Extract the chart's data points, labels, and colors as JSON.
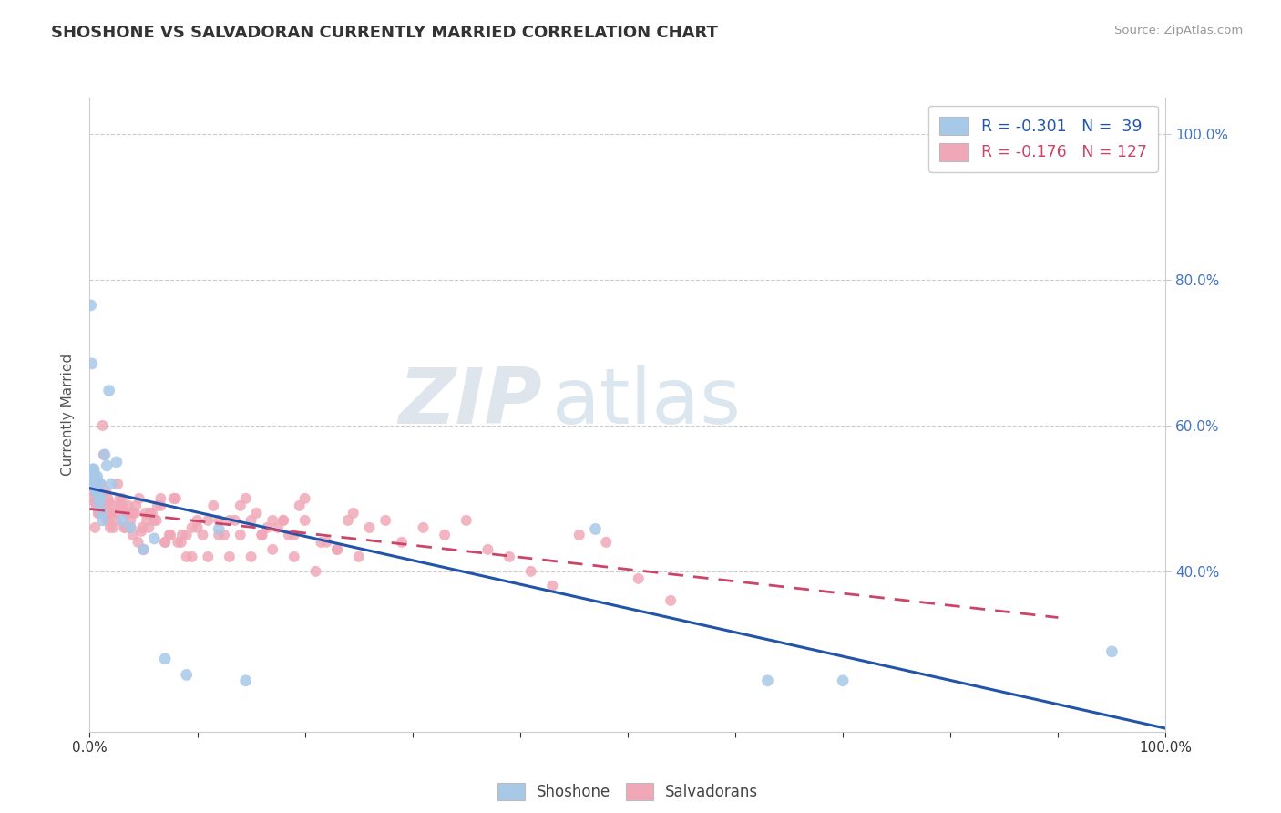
{
  "title": "SHOSHONE VS SALVADORAN CURRENTLY MARRIED CORRELATION CHART",
  "source": "Source: ZipAtlas.com",
  "ylabel": "Currently Married",
  "shoshone_R": -0.301,
  "shoshone_N": 39,
  "salvadoran_R": -0.176,
  "salvadoran_N": 127,
  "shoshone_color": "#a8c8e8",
  "salvadoran_color": "#f0a8b8",
  "shoshone_line_color": "#2255aa",
  "salvadoran_line_color": "#cc4466",
  "background_color": "#ffffff",
  "xlim": [
    0.0,
    1.0
  ],
  "ylim": [
    0.18,
    1.05
  ],
  "y_ticks_right": [
    0.4,
    0.6,
    0.8,
    1.0
  ],
  "watermark_zip": "ZIP",
  "watermark_atlas": "atlas",
  "shoshone_x": [
    0.001,
    0.002,
    0.002,
    0.003,
    0.003,
    0.004,
    0.004,
    0.005,
    0.005,
    0.006,
    0.006,
    0.007,
    0.007,
    0.008,
    0.008,
    0.009,
    0.009,
    0.01,
    0.01,
    0.011,
    0.012,
    0.014,
    0.016,
    0.018,
    0.02,
    0.025,
    0.03,
    0.038,
    0.05,
    0.06,
    0.07,
    0.09,
    0.12,
    0.145,
    0.47,
    0.63,
    0.7,
    0.95,
    0.003
  ],
  "shoshone_y": [
    0.765,
    0.685,
    0.525,
    0.525,
    0.52,
    0.535,
    0.54,
    0.53,
    0.52,
    0.52,
    0.51,
    0.51,
    0.53,
    0.52,
    0.5,
    0.49,
    0.51,
    0.5,
    0.52,
    0.48,
    0.47,
    0.56,
    0.545,
    0.648,
    0.52,
    0.55,
    0.47,
    0.46,
    0.43,
    0.445,
    0.28,
    0.258,
    0.458,
    0.25,
    0.458,
    0.25,
    0.25,
    0.29,
    0.54
  ],
  "salvadoran_x": [
    0.003,
    0.004,
    0.005,
    0.006,
    0.007,
    0.008,
    0.009,
    0.01,
    0.011,
    0.012,
    0.013,
    0.014,
    0.015,
    0.016,
    0.017,
    0.018,
    0.019,
    0.02,
    0.022,
    0.024,
    0.026,
    0.028,
    0.03,
    0.032,
    0.034,
    0.036,
    0.038,
    0.04,
    0.042,
    0.045,
    0.048,
    0.05,
    0.053,
    0.056,
    0.06,
    0.063,
    0.066,
    0.07,
    0.074,
    0.078,
    0.082,
    0.086,
    0.09,
    0.095,
    0.1,
    0.105,
    0.11,
    0.115,
    0.12,
    0.125,
    0.13,
    0.135,
    0.14,
    0.145,
    0.15,
    0.155,
    0.16,
    0.165,
    0.17,
    0.175,
    0.18,
    0.185,
    0.19,
    0.195,
    0.2,
    0.21,
    0.22,
    0.23,
    0.24,
    0.25,
    0.005,
    0.008,
    0.01,
    0.013,
    0.015,
    0.018,
    0.02,
    0.022,
    0.025,
    0.028,
    0.03,
    0.033,
    0.035,
    0.038,
    0.04,
    0.043,
    0.046,
    0.049,
    0.052,
    0.055,
    0.058,
    0.062,
    0.066,
    0.07,
    0.075,
    0.08,
    0.085,
    0.09,
    0.095,
    0.1,
    0.11,
    0.12,
    0.13,
    0.14,
    0.15,
    0.16,
    0.17,
    0.18,
    0.19,
    0.2,
    0.215,
    0.23,
    0.245,
    0.26,
    0.275,
    0.29,
    0.31,
    0.33,
    0.35,
    0.37,
    0.39,
    0.41,
    0.43,
    0.455,
    0.48,
    0.51,
    0.54
  ],
  "salvadoran_y": [
    0.5,
    0.51,
    0.495,
    0.49,
    0.5,
    0.48,
    0.5,
    0.49,
    0.48,
    0.6,
    0.56,
    0.49,
    0.48,
    0.47,
    0.5,
    0.495,
    0.46,
    0.48,
    0.49,
    0.48,
    0.52,
    0.5,
    0.49,
    0.46,
    0.48,
    0.49,
    0.46,
    0.48,
    0.48,
    0.44,
    0.455,
    0.43,
    0.47,
    0.48,
    0.47,
    0.49,
    0.5,
    0.44,
    0.45,
    0.5,
    0.44,
    0.45,
    0.42,
    0.46,
    0.47,
    0.45,
    0.42,
    0.49,
    0.47,
    0.45,
    0.47,
    0.47,
    0.45,
    0.5,
    0.42,
    0.48,
    0.45,
    0.46,
    0.43,
    0.46,
    0.47,
    0.45,
    0.42,
    0.49,
    0.47,
    0.4,
    0.44,
    0.43,
    0.47,
    0.42,
    0.46,
    0.48,
    0.52,
    0.5,
    0.51,
    0.47,
    0.48,
    0.46,
    0.47,
    0.49,
    0.5,
    0.46,
    0.48,
    0.47,
    0.45,
    0.49,
    0.5,
    0.46,
    0.48,
    0.46,
    0.48,
    0.47,
    0.49,
    0.44,
    0.45,
    0.5,
    0.44,
    0.45,
    0.42,
    0.46,
    0.47,
    0.45,
    0.42,
    0.49,
    0.47,
    0.45,
    0.47,
    0.47,
    0.45,
    0.5,
    0.44,
    0.43,
    0.48,
    0.46,
    0.47,
    0.44,
    0.46,
    0.45,
    0.47,
    0.43,
    0.42,
    0.4,
    0.38,
    0.45,
    0.44,
    0.39,
    0.36
  ]
}
